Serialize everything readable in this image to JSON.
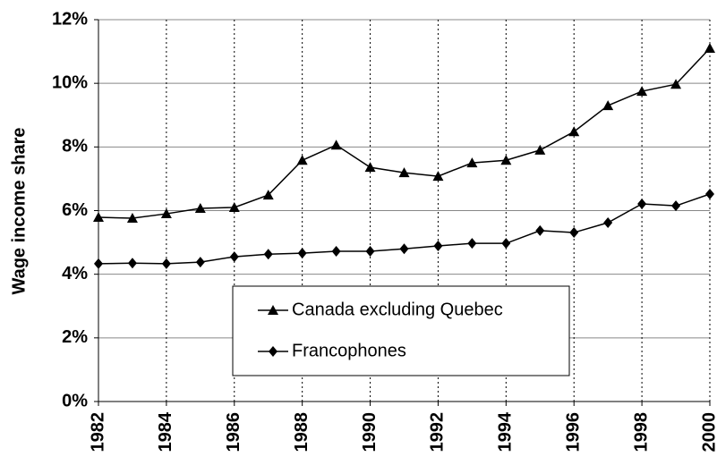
{
  "chart_data": {
    "type": "line",
    "y_label": "Wage income share",
    "x": [
      1982,
      1983,
      1984,
      1985,
      1986,
      1987,
      1988,
      1989,
      1990,
      1991,
      1992,
      1993,
      1994,
      1995,
      1996,
      1997,
      1998,
      1999,
      2000
    ],
    "series": [
      {
        "name": "Canada excluding Quebec",
        "color": "#000000",
        "marker": "triangle",
        "values": [
          5.79,
          5.76,
          5.9,
          6.07,
          6.1,
          6.49,
          7.58,
          8.06,
          7.36,
          7.19,
          7.08,
          7.5,
          7.58,
          7.9,
          8.48,
          9.3,
          9.75,
          9.97,
          11.1
        ]
      },
      {
        "name": "Francophones",
        "color": "#000000",
        "marker": "diamond",
        "values": [
          4.33,
          4.35,
          4.33,
          4.38,
          4.55,
          4.63,
          4.66,
          4.72,
          4.72,
          4.8,
          4.89,
          4.97,
          4.97,
          5.37,
          5.31,
          5.62,
          6.21,
          6.15,
          6.52
        ]
      }
    ],
    "xlim": [
      1982,
      2000
    ],
    "xticks": [
      1982,
      1984,
      1986,
      1988,
      1990,
      1992,
      1994,
      1996,
      1998,
      2000
    ],
    "ylim": [
      0,
      12
    ],
    "yticks": [
      {
        "value": 0,
        "label": "0%"
      },
      {
        "value": 2,
        "label": "2%"
      },
      {
        "value": 4,
        "label": "4%"
      },
      {
        "value": 6,
        "label": "6%"
      },
      {
        "value": 8,
        "label": "8%"
      },
      {
        "value": 10,
        "label": "10%"
      },
      {
        "value": 12,
        "label": "12%"
      }
    ],
    "grid": true,
    "legend": "lower center"
  }
}
